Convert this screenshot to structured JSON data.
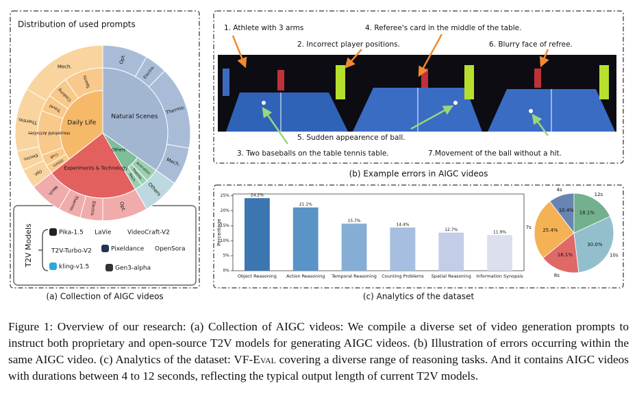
{
  "panel_a": {
    "title": "Distribution of used prompts",
    "sunburst": [
      "Natural Scenes",
      "Others",
      "Experiments & Technology",
      "Daily Life",
      "Animation",
      "Thermo.",
      "Mech.",
      "Others",
      "Craft",
      "Household Activities",
      "Travel",
      "Cooking",
      "Sports",
      "Opt.",
      "Electro.",
      "Thermo.",
      "Mech.",
      "Others",
      "Opt.",
      "Electro.",
      "Thermo.",
      "Mech.",
      "Opt.",
      "Electro.",
      "Thermo.",
      "Mech."
    ],
    "models_label": "T2V Models",
    "models": [
      "Pika-1.5",
      "LaVie",
      "VideoCraft-V2",
      "T2V-Turbo-V2",
      "Pixeldance",
      "OpenSora",
      "kling-v1.5",
      "Gen3-alpha"
    ],
    "caption": "(a) Collection of AIGC videos"
  },
  "panel_b": {
    "annotations": [
      "1. Athlete with 3 arms",
      "4. Referee's card in the middle of the table.",
      "2. Incorrect player positions.",
      "6. Blurry face of refree.",
      "5. Sudden appearence of ball.",
      "3. Two baseballs on the table tennis table.",
      "7.Movement of the ball without a hit."
    ],
    "caption": "(b) Example errors in AIGC videos"
  },
  "panel_c": {
    "caption": "(c) Analytics of the dataset",
    "chart_data": [
      {
        "type": "bar",
        "y_label": "Percentage",
        "categories": [
          "Object Reasoning",
          "Action Reasoning",
          "Temporal Reasoning",
          "Counting Problems",
          "Spatial Reasoning",
          "Information Synopsis"
        ],
        "values": [
          24.2,
          21.1,
          15.7,
          14.4,
          12.7,
          11.9
        ],
        "value_labels": [
          "24.2%",
          "21.1%",
          "15.7%",
          "14.4%",
          "12.7%",
          "11.9%"
        ],
        "colors": [
          "#3b76b1",
          "#5a93c6",
          "#86aed5",
          "#a6bedf",
          "#c3cde7",
          "#dcdfee"
        ],
        "ylim": [
          0,
          25.6
        ],
        "yticks": [
          {
            "value": 0,
            "label": "0%"
          },
          {
            "value": 5,
            "label": "5%"
          },
          {
            "value": 10,
            "label": "10%"
          },
          {
            "value": 15,
            "label": "15%"
          },
          {
            "value": 20,
            "label": "20%"
          },
          {
            "value": 25,
            "label": "25%"
          }
        ]
      },
      {
        "type": "pie",
        "categories": [
          "4s",
          "7s",
          "8s",
          "10s",
          "12s"
        ],
        "values": [
          10.4,
          25.4,
          16.1,
          30.0,
          18.1
        ],
        "value_labels": [
          "10.4%",
          "25.4%",
          "16.1%",
          "30.0%",
          "18.1%"
        ],
        "colors": [
          "#6884b3",
          "#f5b254",
          "#e06867",
          "#93bfcc",
          "#72b08e"
        ]
      }
    ]
  },
  "figure_caption": [
    "Figure 1: Overview of our research: (a) Collection of AIGC videos: We compile a diverse set of video generation prompts to instruct both proprietary and open-source T2V models for generating AIGC videos. (b) Illustration of errors occurring within the same AIGC video. (c) Analytics of the dataset: ",
    "VF-Eval",
    " covering a diverse range of reasoning tasks. And it contains AIGC videos with durations between 4 to 12 seconds, reflecting the typical output length of current T2V models."
  ]
}
